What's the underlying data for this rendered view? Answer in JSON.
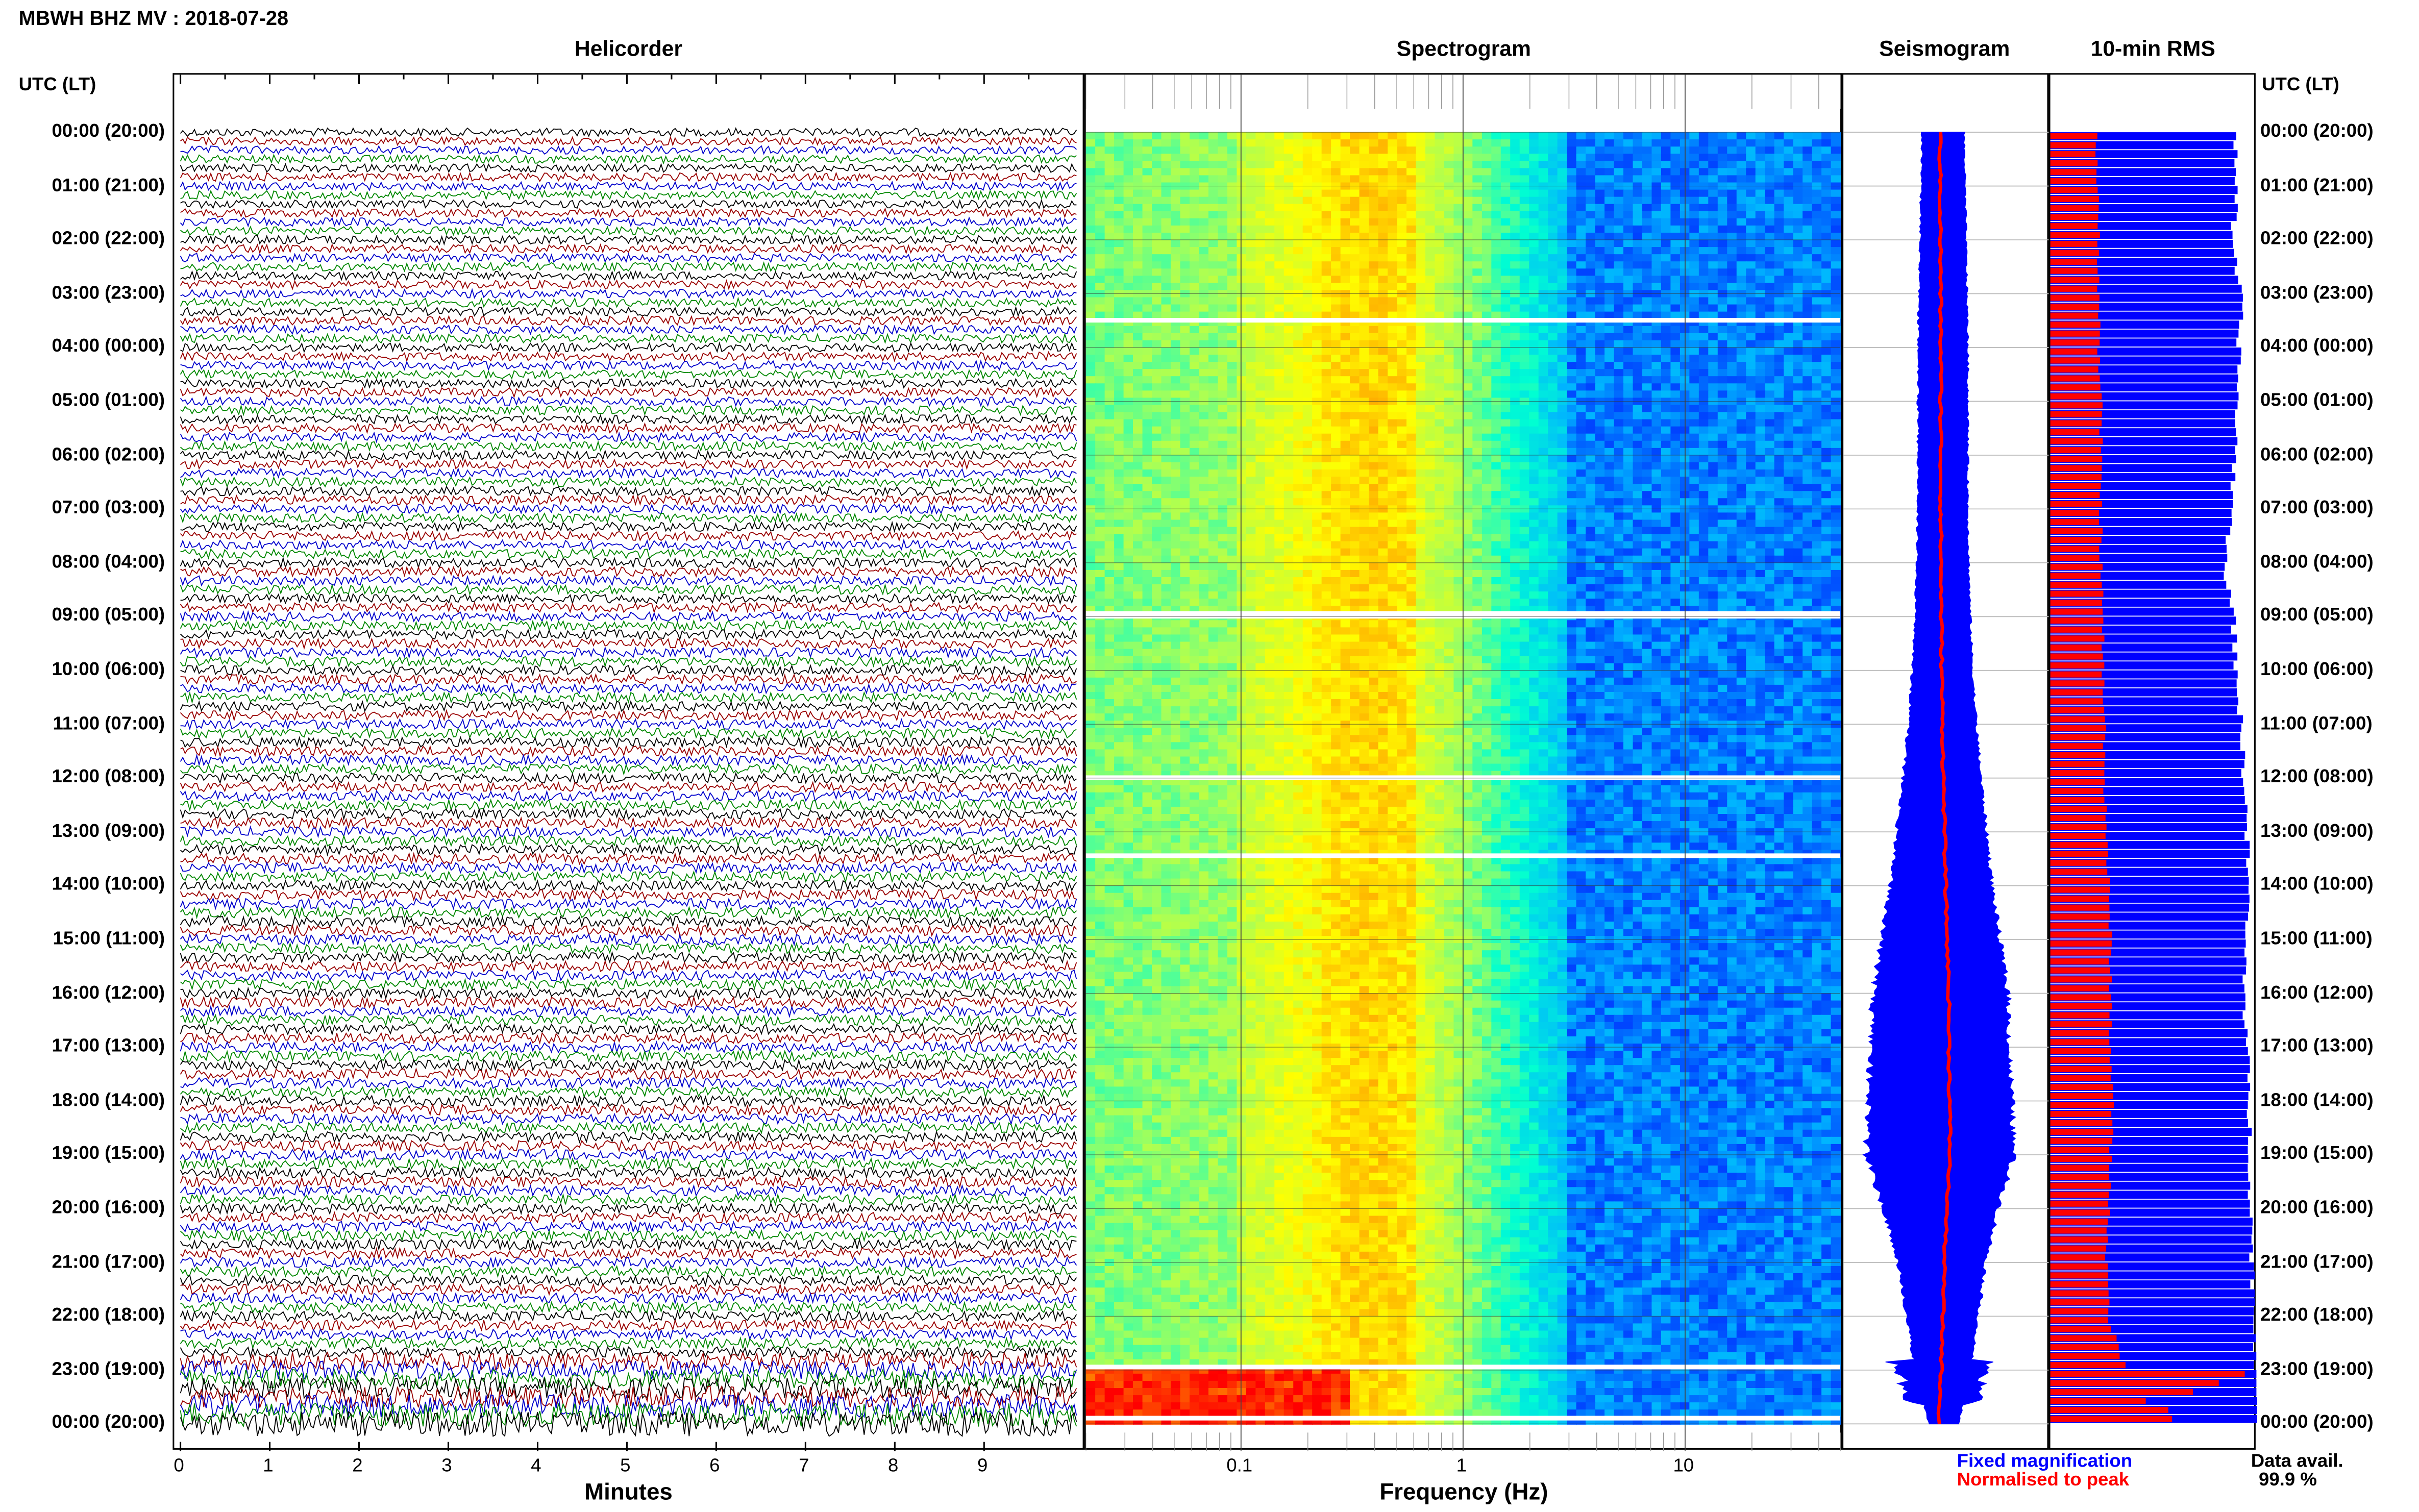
{
  "header": {
    "title": "MBWH BHZ MV : 2018-07-28"
  },
  "panels": {
    "helicorder": "Helicorder",
    "spectrogram": "Spectrogram",
    "seismogram": "Seismogram",
    "rms": "10-min RMS"
  },
  "axes": {
    "time_label": "UTC (LT)",
    "minutes_label": "Minutes",
    "frequency_label": "Frequency (Hz)"
  },
  "legend": {
    "fixed": "Fixed magnification",
    "normalised": "Normalised to peak",
    "fixed_color": "#0000ff",
    "normalised_color": "#ff0000",
    "avail_label": "Data avail.",
    "avail_value": "99.9 %"
  },
  "chart_data": {
    "type": "heatmap",
    "time_ticks": [
      "00:00 (20:00)",
      "01:00 (21:00)",
      "02:00 (22:00)",
      "03:00 (23:00)",
      "04:00 (00:00)",
      "05:00 (01:00)",
      "06:00 (02:00)",
      "07:00 (03:00)",
      "08:00 (04:00)",
      "09:00 (05:00)",
      "10:00 (06:00)",
      "11:00 (07:00)",
      "12:00 (08:00)",
      "13:00 (09:00)",
      "14:00 (10:00)",
      "15:00 (11:00)",
      "16:00 (12:00)",
      "17:00 (13:00)",
      "18:00 (14:00)",
      "19:00 (15:00)",
      "20:00 (16:00)",
      "21:00 (17:00)",
      "22:00 (18:00)",
      "23:00 (19:00)",
      "00:00 (20:00)"
    ],
    "minute_ticks": [
      "0",
      "1",
      "2",
      "3",
      "4",
      "5",
      "6",
      "7",
      "8",
      "9"
    ],
    "minutes_range": [
      0,
      10
    ],
    "helicorder_trace_colors": [
      "#000000",
      "#990000",
      "#0000cc",
      "#008800"
    ],
    "frequency_ticks": [
      {
        "value": 0.1,
        "label": "0.1"
      },
      {
        "value": 1,
        "label": "1"
      },
      {
        "value": 10,
        "label": "10"
      }
    ],
    "frequency_range": [
      0.02,
      50
    ],
    "frequency_scale": "log",
    "spectrogram_colormap": [
      "#0000ff",
      "#00b4ff",
      "#00ffd2",
      "#aaff55",
      "#ffff00",
      "#ff9900",
      "#ff0000"
    ],
    "spectrogram_data_gaps_hours": [
      3.45,
      8.9,
      8.95,
      11.95,
      13.4,
      22.9,
      23.85
    ],
    "seismogram_hours": [
      0,
      1,
      2,
      3,
      4,
      5,
      6,
      7,
      8,
      9,
      10,
      11,
      12,
      13,
      14,
      15,
      16,
      17,
      18,
      19,
      20,
      21,
      22,
      23,
      24
    ],
    "seismogram_amplitude": [
      0.42,
      0.44,
      0.46,
      0.48,
      0.5,
      0.5,
      0.5,
      0.5,
      0.52,
      0.55,
      0.6,
      0.68,
      0.78,
      0.9,
      1.02,
      1.18,
      1.36,
      1.38,
      1.44,
      1.48,
      1.15,
      0.88,
      0.72,
      0.55,
      0.3
    ],
    "rms_fixed": [
      0.95,
      0.96,
      0.93,
      0.98,
      0.97,
      0.96,
      0.95,
      0.93,
      0.9,
      0.94,
      0.96,
      0.98,
      1.0,
      1.01,
      1.02,
      1.0,
      1.0,
      1.01,
      1.02,
      1.03,
      1.03,
      1.04,
      1.05,
      1.06,
      1.06
    ],
    "rms_normalised": [
      0.24,
      0.24,
      0.25,
      0.25,
      0.25,
      0.26,
      0.26,
      0.26,
      0.26,
      0.27,
      0.27,
      0.28,
      0.28,
      0.29,
      0.3,
      0.31,
      0.31,
      0.31,
      0.32,
      0.31,
      0.3,
      0.29,
      0.3,
      0.4,
      0.5
    ]
  }
}
